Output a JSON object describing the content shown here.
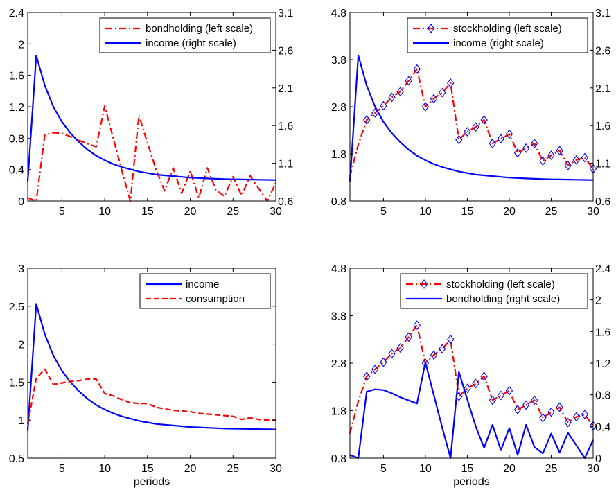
{
  "chart_data": [
    {
      "type": "line",
      "xlabel": "",
      "xlim": [
        1,
        30
      ],
      "x_ticks": [
        "5",
        "10",
        "15",
        "20",
        "25",
        "30"
      ],
      "ylim_left": [
        0,
        2.4
      ],
      "left_ticks": [
        "0",
        "0.4",
        "0.8",
        "1.2",
        "1.6",
        "2",
        "2.4"
      ],
      "ylim_right": [
        0.6,
        3.1
      ],
      "right_ticks": [
        "0.6",
        "1.1",
        "1.6",
        "2.1",
        "2.6",
        "3.1"
      ],
      "legend_placement": "top-right",
      "series": [
        {
          "name": "bondholding (left scale)",
          "axis": "left",
          "color": "#ff0000",
          "style": "dashdot",
          "marker": "none",
          "x": [
            1,
            2,
            3,
            4,
            5,
            6,
            7,
            8,
            9,
            10,
            11,
            12,
            13,
            14,
            15,
            16,
            17,
            18,
            19,
            20,
            21,
            22,
            23,
            24,
            25,
            26,
            27,
            28,
            29,
            30
          ],
          "values": [
            0.04,
            0.0,
            0.84,
            0.87,
            0.86,
            0.82,
            0.77,
            0.73,
            0.69,
            1.21,
            0.8,
            0.39,
            0.0,
            1.09,
            0.74,
            0.4,
            0.13,
            0.42,
            0.1,
            0.38,
            0.04,
            0.42,
            0.14,
            0.06,
            0.31,
            0.07,
            0.32,
            0.16,
            0.0,
            0.23
          ]
        },
        {
          "name": "income (right scale)",
          "axis": "right",
          "color": "#0000ff",
          "style": "solid",
          "marker": "none",
          "x": [
            1,
            2,
            3,
            4,
            5,
            6,
            7,
            8,
            9,
            10,
            11,
            12,
            13,
            14,
            15,
            16,
            17,
            18,
            19,
            20,
            21,
            22,
            23,
            24,
            25,
            26,
            27,
            28,
            29,
            30
          ],
          "values": [
            0.86,
            2.53,
            2.13,
            1.85,
            1.65,
            1.5,
            1.38,
            1.28,
            1.2,
            1.14,
            1.09,
            1.05,
            1.02,
            0.99,
            0.97,
            0.95,
            0.94,
            0.93,
            0.92,
            0.91,
            0.905,
            0.9,
            0.895,
            0.89,
            0.888,
            0.886,
            0.884,
            0.882,
            0.88,
            0.878
          ]
        }
      ]
    },
    {
      "type": "line",
      "xlabel": "",
      "xlim": [
        1,
        30
      ],
      "x_ticks": [
        "5",
        "10",
        "15",
        "20",
        "25",
        "30"
      ],
      "ylim_left": [
        0.8,
        4.8
      ],
      "left_ticks": [
        "0.8",
        "1.8",
        "2.8",
        "3.8",
        "4.8"
      ],
      "ylim_right": [
        0.6,
        3.1
      ],
      "right_ticks": [
        "0.6",
        "1.1",
        "1.6",
        "2.1",
        "2.6",
        "3.1"
      ],
      "legend_placement": "top-right",
      "series": [
        {
          "name": "stockholding (left scale)",
          "axis": "left",
          "color": "#ff0000",
          "style": "dashdot",
          "marker": "diamond",
          "x": [
            1,
            2,
            3,
            4,
            5,
            6,
            7,
            8,
            9,
            10,
            11,
            12,
            13,
            14,
            15,
            16,
            17,
            18,
            19,
            20,
            21,
            22,
            23,
            24,
            25,
            26,
            27,
            28,
            29,
            30
          ],
          "values": [
            1.32,
            2.0,
            2.52,
            2.67,
            2.82,
            3.0,
            3.12,
            3.35,
            3.6,
            2.8,
            2.97,
            3.1,
            3.3,
            2.1,
            2.27,
            2.37,
            2.52,
            2.02,
            2.12,
            2.22,
            1.82,
            1.92,
            2.02,
            1.65,
            1.77,
            1.87,
            1.55,
            1.67,
            1.72,
            1.48
          ]
        },
        {
          "name": "income (right scale)",
          "axis": "right",
          "color": "#0000ff",
          "style": "solid",
          "marker": "none",
          "x": [
            1,
            2,
            3,
            4,
            5,
            6,
            7,
            8,
            9,
            10,
            11,
            12,
            13,
            14,
            15,
            16,
            17,
            18,
            19,
            20,
            21,
            22,
            23,
            24,
            25,
            26,
            27,
            28,
            29,
            30
          ],
          "values": [
            0.86,
            2.53,
            2.13,
            1.85,
            1.65,
            1.5,
            1.38,
            1.28,
            1.2,
            1.14,
            1.09,
            1.05,
            1.02,
            0.99,
            0.97,
            0.95,
            0.94,
            0.93,
            0.92,
            0.91,
            0.905,
            0.9,
            0.895,
            0.89,
            0.888,
            0.886,
            0.884,
            0.882,
            0.88,
            0.878
          ]
        }
      ]
    },
    {
      "type": "line",
      "xlabel": "periods",
      "xlim": [
        1,
        30
      ],
      "x_ticks": [
        "5",
        "10",
        "15",
        "20",
        "25",
        "30"
      ],
      "ylim_left": [
        0.5,
        3
      ],
      "left_ticks": [
        "0.5",
        "1",
        "1.5",
        "2",
        "2.5",
        "3"
      ],
      "legend_placement": "top-right",
      "series": [
        {
          "name": "income",
          "axis": "left",
          "color": "#0000ff",
          "style": "solid",
          "marker": "none",
          "x": [
            1,
            2,
            3,
            4,
            5,
            6,
            7,
            8,
            9,
            10,
            11,
            12,
            13,
            14,
            15,
            16,
            17,
            18,
            19,
            20,
            21,
            22,
            23,
            24,
            25,
            26,
            27,
            28,
            29,
            30
          ],
          "values": [
            0.86,
            2.53,
            2.13,
            1.85,
            1.65,
            1.5,
            1.38,
            1.28,
            1.2,
            1.14,
            1.09,
            1.05,
            1.02,
            0.99,
            0.97,
            0.95,
            0.94,
            0.93,
            0.92,
            0.91,
            0.905,
            0.9,
            0.895,
            0.89,
            0.888,
            0.886,
            0.884,
            0.882,
            0.88,
            0.878
          ]
        },
        {
          "name": "consumption",
          "axis": "left",
          "color": "#ff0000",
          "style": "dashed",
          "marker": "none",
          "x": [
            1,
            2,
            3,
            4,
            5,
            6,
            7,
            8,
            9,
            10,
            11,
            12,
            13,
            14,
            15,
            16,
            17,
            18,
            19,
            20,
            21,
            22,
            23,
            24,
            25,
            26,
            27,
            28,
            29,
            30
          ],
          "values": [
            0.95,
            1.55,
            1.67,
            1.47,
            1.49,
            1.51,
            1.52,
            1.54,
            1.54,
            1.35,
            1.32,
            1.27,
            1.23,
            1.22,
            1.22,
            1.17,
            1.15,
            1.13,
            1.12,
            1.11,
            1.09,
            1.08,
            1.07,
            1.06,
            1.05,
            1.01,
            1.03,
            1.01,
            1.0,
            1.0
          ]
        }
      ]
    },
    {
      "type": "line",
      "xlabel": "periods",
      "xlim": [
        1,
        30
      ],
      "x_ticks": [
        "5",
        "10",
        "15",
        "20",
        "25",
        "30"
      ],
      "ylim_left": [
        0.8,
        4.8
      ],
      "left_ticks": [
        "0.8",
        "1.8",
        "2.8",
        "3.8",
        "4.8"
      ],
      "ylim_right": [
        0,
        2.4
      ],
      "right_ticks": [
        "0",
        "0.4",
        "0.8",
        "1.2",
        "1.6",
        "2",
        "2.4"
      ],
      "legend_placement": "top-right",
      "series": [
        {
          "name": "stockholding (left scale)",
          "axis": "left",
          "color": "#ff0000",
          "style": "dashdot",
          "marker": "diamond",
          "x": [
            1,
            2,
            3,
            4,
            5,
            6,
            7,
            8,
            9,
            10,
            11,
            12,
            13,
            14,
            15,
            16,
            17,
            18,
            19,
            20,
            21,
            22,
            23,
            24,
            25,
            26,
            27,
            28,
            29,
            30
          ],
          "values": [
            1.32,
            2.0,
            2.52,
            2.67,
            2.82,
            3.0,
            3.12,
            3.35,
            3.6,
            2.8,
            2.97,
            3.1,
            3.3,
            2.1,
            2.27,
            2.37,
            2.52,
            2.02,
            2.12,
            2.22,
            1.82,
            1.92,
            2.02,
            1.65,
            1.77,
            1.87,
            1.55,
            1.67,
            1.72,
            1.48
          ]
        },
        {
          "name": "bondholding (right scale)",
          "axis": "right",
          "color": "#0000ff",
          "style": "solid",
          "marker": "none",
          "x": [
            1,
            2,
            3,
            4,
            5,
            6,
            7,
            8,
            9,
            10,
            11,
            12,
            13,
            14,
            15,
            16,
            17,
            18,
            19,
            20,
            21,
            22,
            23,
            24,
            25,
            26,
            27,
            28,
            29,
            30
          ],
          "values": [
            0.04,
            0.0,
            0.84,
            0.87,
            0.86,
            0.82,
            0.77,
            0.73,
            0.69,
            1.21,
            0.8,
            0.39,
            0.0,
            1.09,
            0.74,
            0.4,
            0.13,
            0.42,
            0.1,
            0.38,
            0.04,
            0.42,
            0.14,
            0.06,
            0.31,
            0.07,
            0.32,
            0.16,
            0.0,
            0.23
          ]
        }
      ]
    }
  ]
}
